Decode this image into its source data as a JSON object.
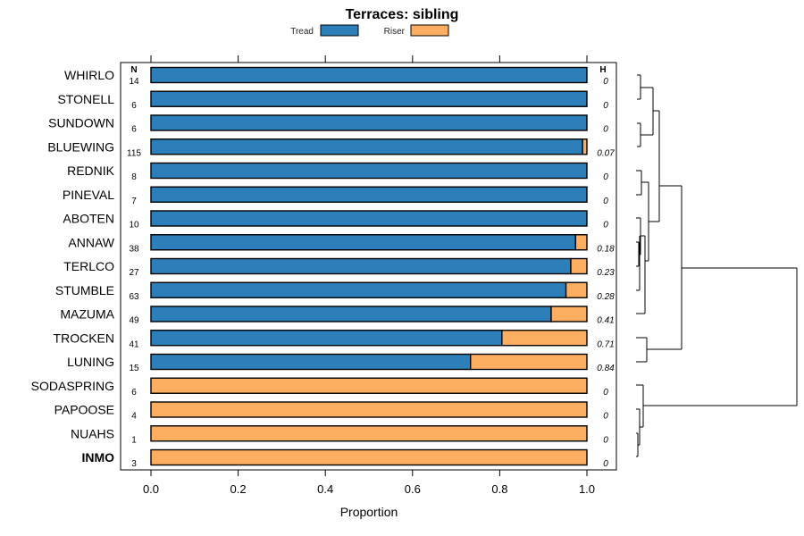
{
  "chart_data": {
    "type": "bar",
    "orientation": "horizontal",
    "stacked": true,
    "title": "Terraces: sibling",
    "xlabel": "Proportion",
    "xlim": [
      0,
      1
    ],
    "xticks": [
      "0.0",
      "0.2",
      "0.4",
      "0.6",
      "0.8",
      "1.0"
    ],
    "col_header_n": "N",
    "col_header_h": "H",
    "legend": [
      {
        "name": "Tread",
        "color": "#2c7fb8"
      },
      {
        "name": "Riser",
        "color": "#fdae61"
      }
    ],
    "categories": [
      "WHIRLO",
      "STONELL",
      "SUNDOWN",
      "BLUEWING",
      "REDNIK",
      "PINEVAL",
      "ABOTEN",
      "ANNAW",
      "TERLCO",
      "STUMBLE",
      "MAZUMA",
      "TROCKEN",
      "LUNING",
      "SODASPRING",
      "PAPOOSE",
      "NUAHS",
      "INMO"
    ],
    "bold_categories": [
      "INMO"
    ],
    "n": [
      "14",
      "6",
      "6",
      "115",
      "8",
      "7",
      "10",
      "38",
      "27",
      "63",
      "49",
      "41",
      "15",
      "6",
      "4",
      "1",
      "3"
    ],
    "h": [
      "0",
      "0",
      "0",
      "0.07",
      "0",
      "0",
      "0",
      "0.18",
      "0.23",
      "0.28",
      "0.41",
      "0.71",
      "0.84",
      "0",
      "0",
      "0",
      "0"
    ],
    "series": [
      {
        "name": "Tread",
        "values": [
          1,
          1,
          1,
          0.99,
          1,
          1,
          1,
          0.974,
          0.963,
          0.952,
          0.918,
          0.805,
          0.733,
          0,
          0,
          0,
          0
        ]
      },
      {
        "name": "Riser",
        "values": [
          0,
          0,
          0,
          0.01,
          0,
          0,
          0,
          0.026,
          0.037,
          0.048,
          0.082,
          0.195,
          0.267,
          1,
          1,
          1,
          1
        ]
      }
    ]
  }
}
